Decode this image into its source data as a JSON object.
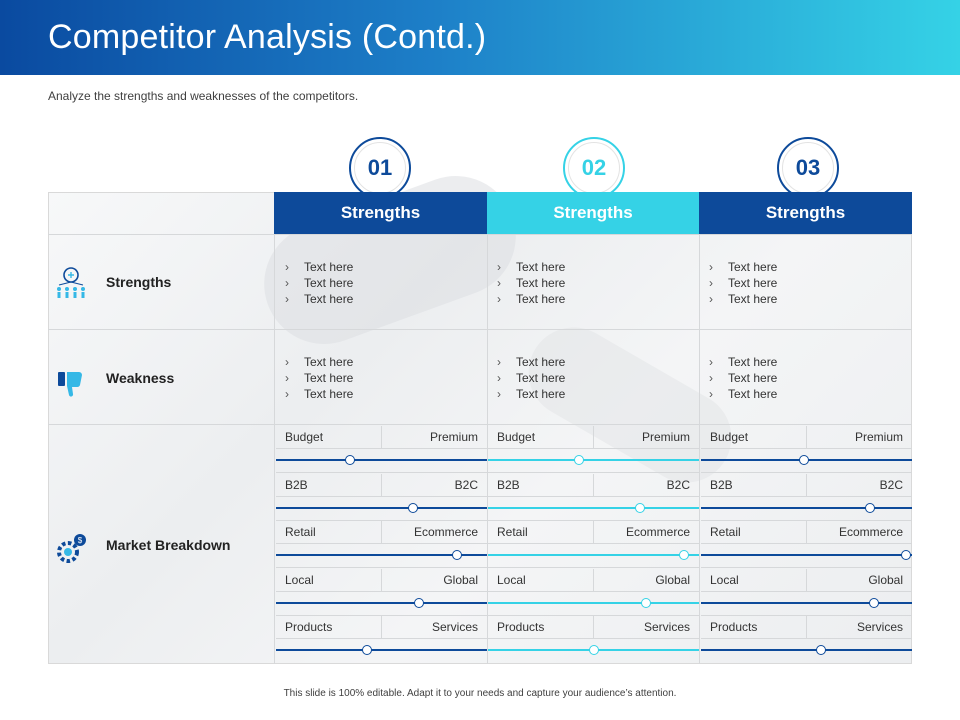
{
  "header": {
    "title": "Competitor Analysis (Contd.)"
  },
  "subtitle": "Analyze the strengths and weaknesses of the competitors.",
  "footer": "This slide is 100% editable.  Adapt it to your needs and capture your audience’s attention.",
  "colors": {
    "dark_blue": "#0a4aa0",
    "cyan": "#35d2e6",
    "header_dark": "#0d4a9a"
  },
  "columns": [
    {
      "number": "01",
      "heading": "Strengths"
    },
    {
      "number": "02",
      "heading": "Strengths"
    },
    {
      "number": "03",
      "heading": "Strengths"
    }
  ],
  "rows": {
    "strengths": {
      "label": "Strengths",
      "icon": "team-idea-icon",
      "items": [
        "Text here",
        "Text here",
        "Text here"
      ]
    },
    "weakness": {
      "label": "Weakness",
      "icon": "thumbs-down-icon",
      "items": [
        "Text here",
        "Text here",
        "Text here"
      ]
    },
    "market": {
      "label": "Market Breakdown",
      "icon": "gear-dollar-icon"
    }
  },
  "market_pairs": [
    {
      "left": "Budget",
      "right": "Premium",
      "levels": [
        0.35,
        0.43,
        0.49
      ]
    },
    {
      "left": "B2B",
      "right": "B2C",
      "levels": [
        0.65,
        0.72,
        0.8
      ]
    },
    {
      "left": "Retail",
      "right": "Ecommerce",
      "levels": [
        0.86,
        0.93,
        0.97
      ]
    },
    {
      "left": "Local",
      "right": "Global",
      "levels": [
        0.68,
        0.75,
        0.82
      ]
    },
    {
      "left": "Products",
      "right": "Services",
      "levels": [
        0.43,
        0.5,
        0.57
      ]
    }
  ]
}
